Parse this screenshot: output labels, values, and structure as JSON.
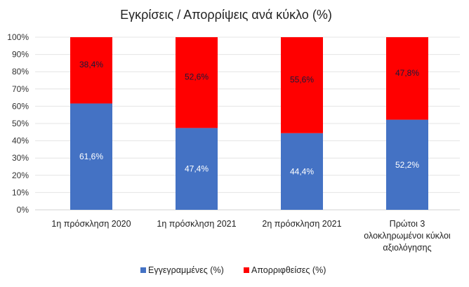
{
  "chart_data": {
    "type": "bar",
    "stacked": true,
    "title": "Εγκρίσεις / Απορρίψεις ανά κύκλο (%)",
    "categories": [
      [
        "1η πρόσκληση 2020"
      ],
      [
        "1η πρόσκληση 2021"
      ],
      [
        "2η πρόσκληση 2021"
      ],
      [
        "Πρώτοι 3",
        "ολοκληρωμένοι κύκλοι",
        "αξιολόγησης"
      ]
    ],
    "series": [
      {
        "name": "Εγγεγραμμένες (%)",
        "color": "#4472C4",
        "values": [
          61.6,
          47.4,
          44.4,
          52.2
        ],
        "labels": [
          "61,6%",
          "47,4%",
          "44,4%",
          "52,2%"
        ],
        "label_color": "#ffffff"
      },
      {
        "name": "Απορριφθείσες (%)",
        "color": "#FF0000",
        "values": [
          38.4,
          52.6,
          55.6,
          47.8
        ],
        "labels": [
          "38,4%",
          "52,6%",
          "55,6%",
          "47,8%"
        ],
        "label_color": "#1a1a3a"
      }
    ],
    "yticks": [
      "0%",
      "10%",
      "20%",
      "30%",
      "40%",
      "50%",
      "60%",
      "70%",
      "80%",
      "90%",
      "100%"
    ],
    "ylim": [
      0,
      100
    ],
    "grid": true,
    "legend": "bottom"
  }
}
